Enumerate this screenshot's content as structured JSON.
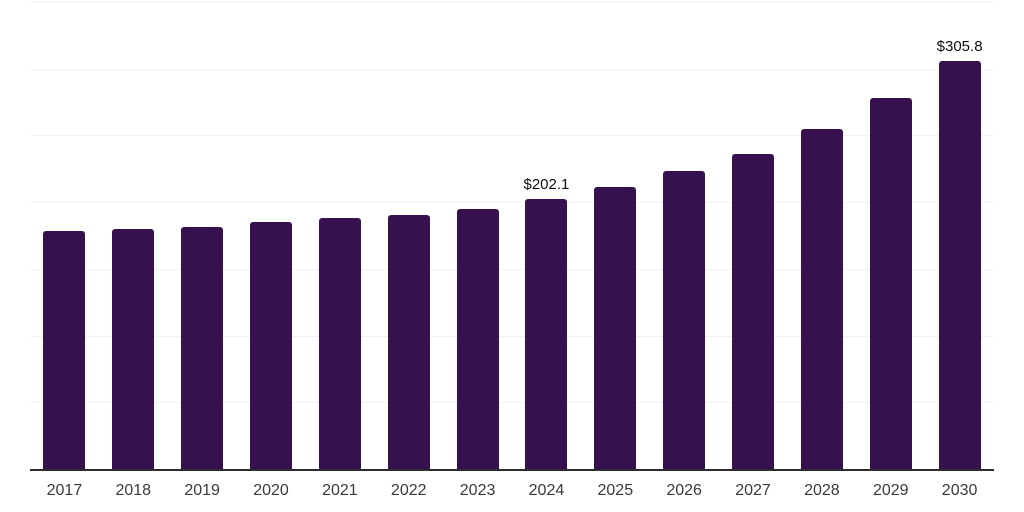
{
  "chart_data": {
    "type": "bar",
    "title": "",
    "xlabel": "",
    "ylabel": "",
    "categories": [
      "2017",
      "2018",
      "2019",
      "2020",
      "2021",
      "2022",
      "2023",
      "2024",
      "2025",
      "2026",
      "2027",
      "2028",
      "2029",
      "2030"
    ],
    "values": [
      178.0,
      179.7,
      181.5,
      185.0,
      187.8,
      190.5,
      195.0,
      202.1,
      211.3,
      223.2,
      236.4,
      255.0,
      278.1,
      305.8
    ],
    "data_labels": [
      "",
      "",
      "",
      "",
      "",
      "",
      "",
      "$202.1",
      "",
      "",
      "",
      "",
      "",
      "$305.8"
    ],
    "ylim": [
      0,
      350
    ],
    "grid_step": 50,
    "grid": true,
    "legend": false,
    "bar_color": "#36114D",
    "grid_color": "#f0f0f2",
    "axis_color": "#2d2d2d",
    "tick_label_color": "#3a3a3a",
    "data_label_color": "#0f0f0f"
  }
}
